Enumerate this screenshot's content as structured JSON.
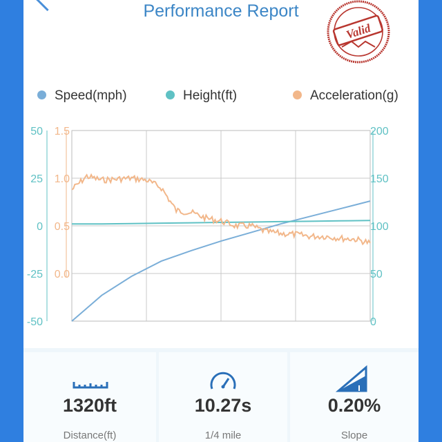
{
  "header": {
    "title": "Performance Report",
    "stamp_text": "Valid"
  },
  "colors": {
    "speed": "#7aaed8",
    "height": "#5fc1c4",
    "acceleration": "#f2b78a",
    "accent": "#3c86c6",
    "stamp": "#b8362f"
  },
  "chart_data": {
    "type": "line",
    "title": "",
    "legend": [
      "Speed(mph)",
      "Height(ft)",
      "Acceleration(g)"
    ],
    "legend_position": "top",
    "grid": true,
    "x": [
      0,
      0.1,
      0.2,
      0.3,
      0.4,
      0.5,
      0.6,
      0.7,
      0.8,
      0.9,
      1.0
    ],
    "axes": {
      "left_outer": {
        "series": "Height(ft)",
        "ticks": [
          "50",
          "25",
          "0",
          "-25",
          "-50"
        ],
        "ylim": [
          -50,
          50
        ]
      },
      "left_inner": {
        "series": "Acceleration(g)",
        "ticks": [
          "1.5",
          "1.0",
          "0.5",
          "0.0"
        ],
        "ylim": [
          -0.5,
          1.5
        ]
      },
      "right": {
        "series": "Speed(mph)",
        "ticks": [
          "200",
          "150",
          "100",
          "50",
          "0"
        ],
        "ylim": [
          0,
          200
        ]
      }
    },
    "series": [
      {
        "name": "Speed(mph)",
        "axis": "right",
        "values": [
          0,
          27,
          47,
          63,
          74,
          84,
          93,
          102,
          110,
          118,
          126
        ]
      },
      {
        "name": "Height(ft)",
        "axis": "left_outer",
        "values": [
          1,
          1,
          1.2,
          1.4,
          1.6,
          1.8,
          2,
          2.2,
          2.4,
          2.6,
          2.8
        ]
      },
      {
        "name": "Acceleration(g)",
        "axis": "left_inner",
        "x": [
          0,
          0.05,
          0.1,
          0.15,
          0.2,
          0.25,
          0.3,
          0.35,
          0.4,
          0.45,
          0.5,
          0.55,
          0.6,
          0.65,
          0.7,
          0.75,
          0.8,
          0.85,
          0.9,
          0.95,
          1.0
        ],
        "values": [
          0.88,
          1.02,
          0.98,
          0.99,
          1.0,
          0.98,
          0.9,
          0.66,
          0.64,
          0.58,
          0.55,
          0.5,
          0.5,
          0.44,
          0.42,
          0.41,
          0.39,
          0.39,
          0.37,
          0.36,
          0.32
        ]
      }
    ]
  },
  "stats": [
    {
      "value": "1320ft",
      "label": "Distance(ft)",
      "icon": "ruler-icon"
    },
    {
      "value": "10.27s",
      "label": "1/4 mile",
      "icon": "speedometer-icon"
    },
    {
      "value": "0.20%",
      "label": "Slope",
      "icon": "slope-icon"
    }
  ]
}
